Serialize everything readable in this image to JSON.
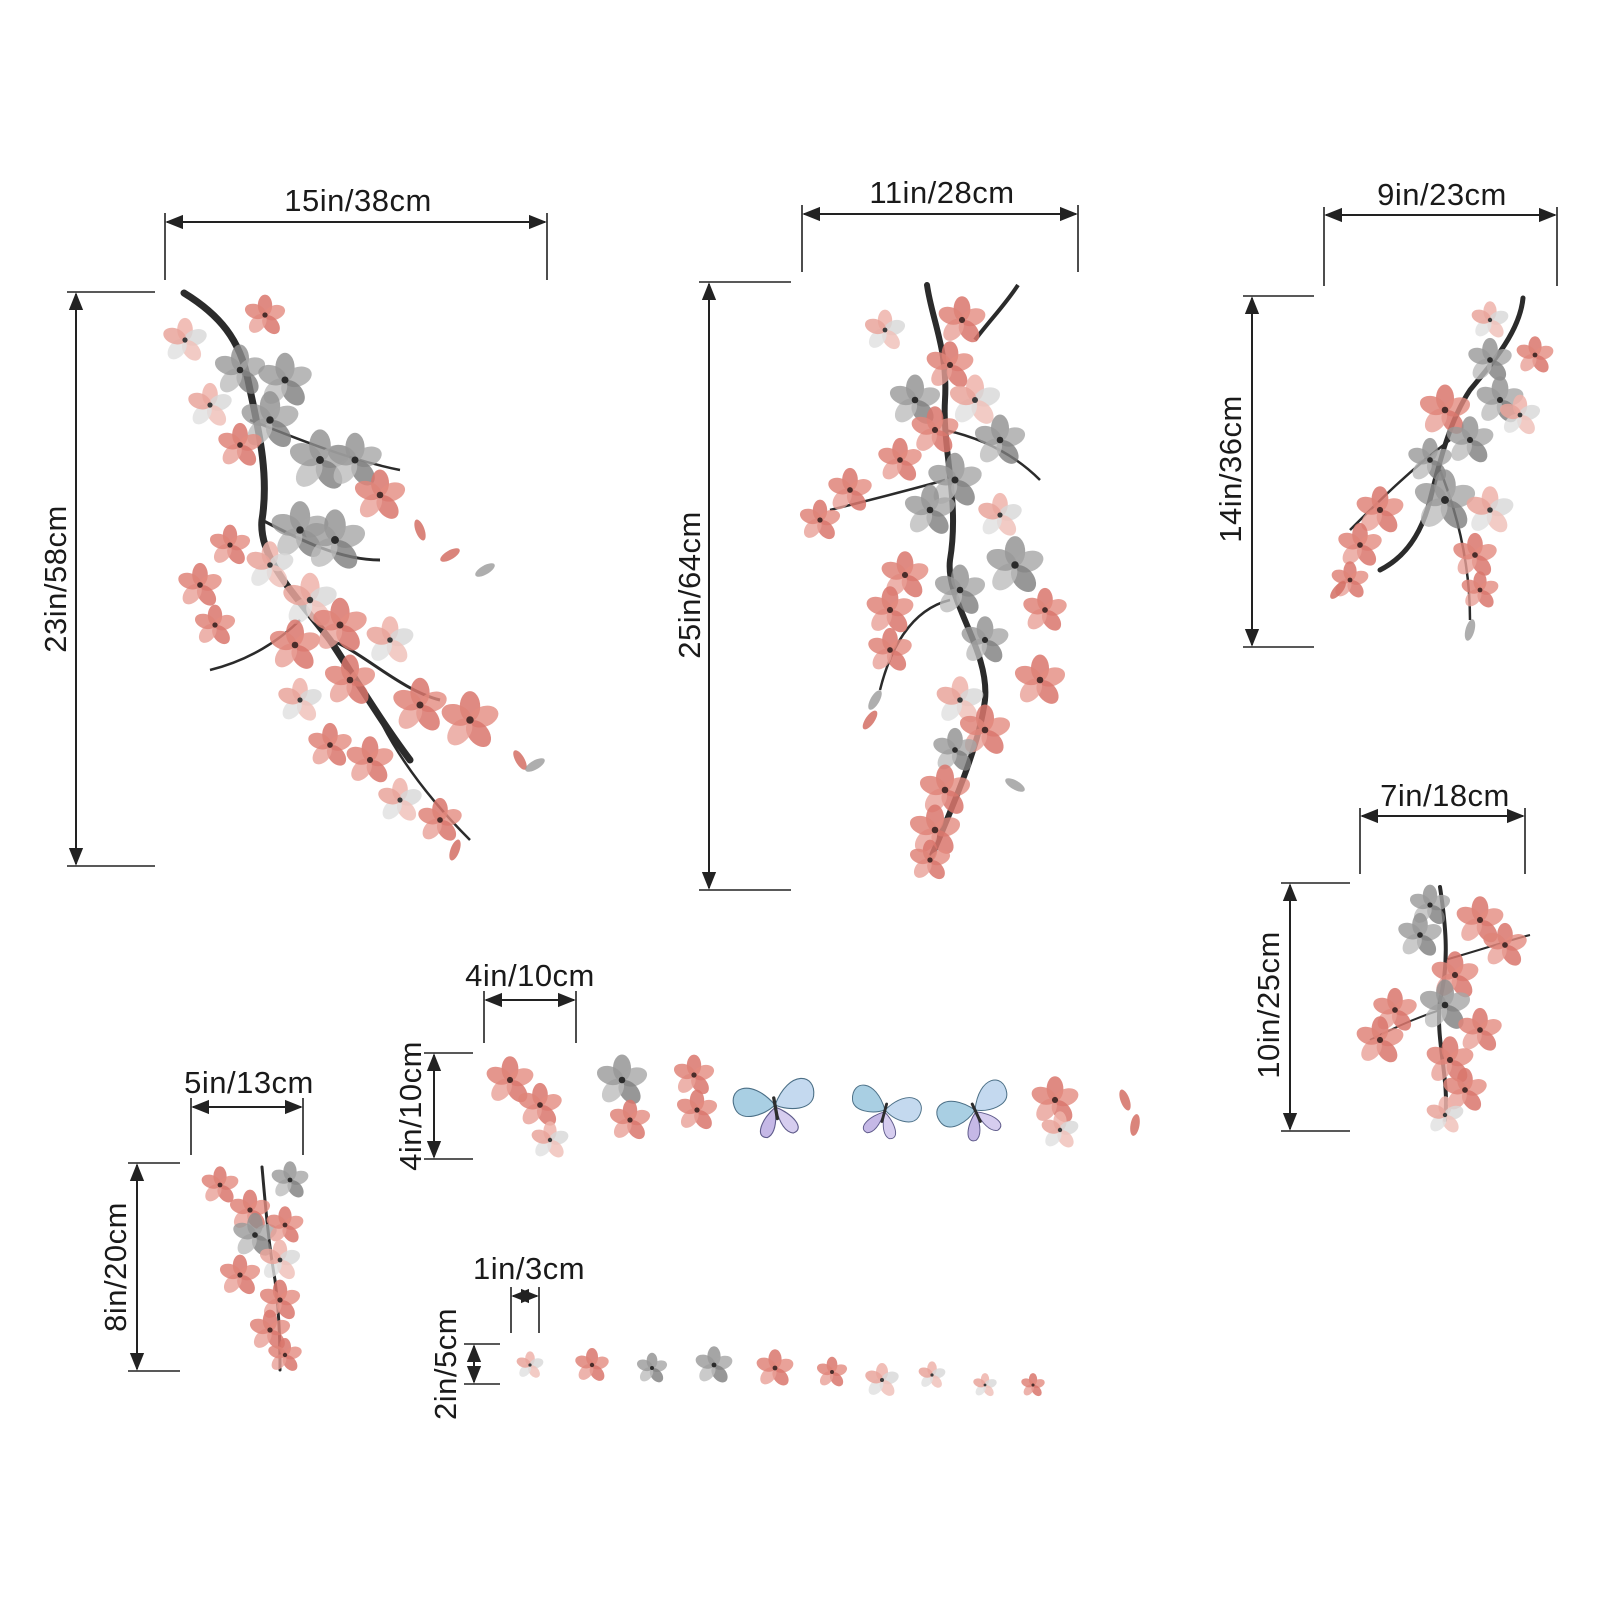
{
  "dimensions": {
    "branch_large": {
      "width": "15in/38cm",
      "height": "23in/58cm"
    },
    "branch_center": {
      "width": "11in/28cm",
      "height": "25in/64cm"
    },
    "branch_right": {
      "width": "9in/23cm",
      "height": "14in/36cm"
    },
    "branch_small": {
      "width": "7in/18cm",
      "height": "10in/25cm"
    },
    "sprig": {
      "width": "5in/13cm",
      "height": "8in/20cm"
    },
    "small_items": {
      "width": "4in/10cm",
      "height": "4in/10cm"
    },
    "tiny_petals": {
      "width": "1in/3cm",
      "height": "2in/5cm"
    }
  },
  "colors": {
    "blossom_pink": "#d9756c",
    "blossom_light": "#efb3aa",
    "blossom_gray": "#8e8e8e",
    "blossom_lightgray": "#c9c9c9",
    "branch": "#2b2b2b",
    "butterfly_blue": "#7fb7d6",
    "butterfly_violet": "#b7a8dc"
  },
  "icons": {
    "flower": "blossom-icon",
    "butterfly": "butterfly-icon"
  }
}
